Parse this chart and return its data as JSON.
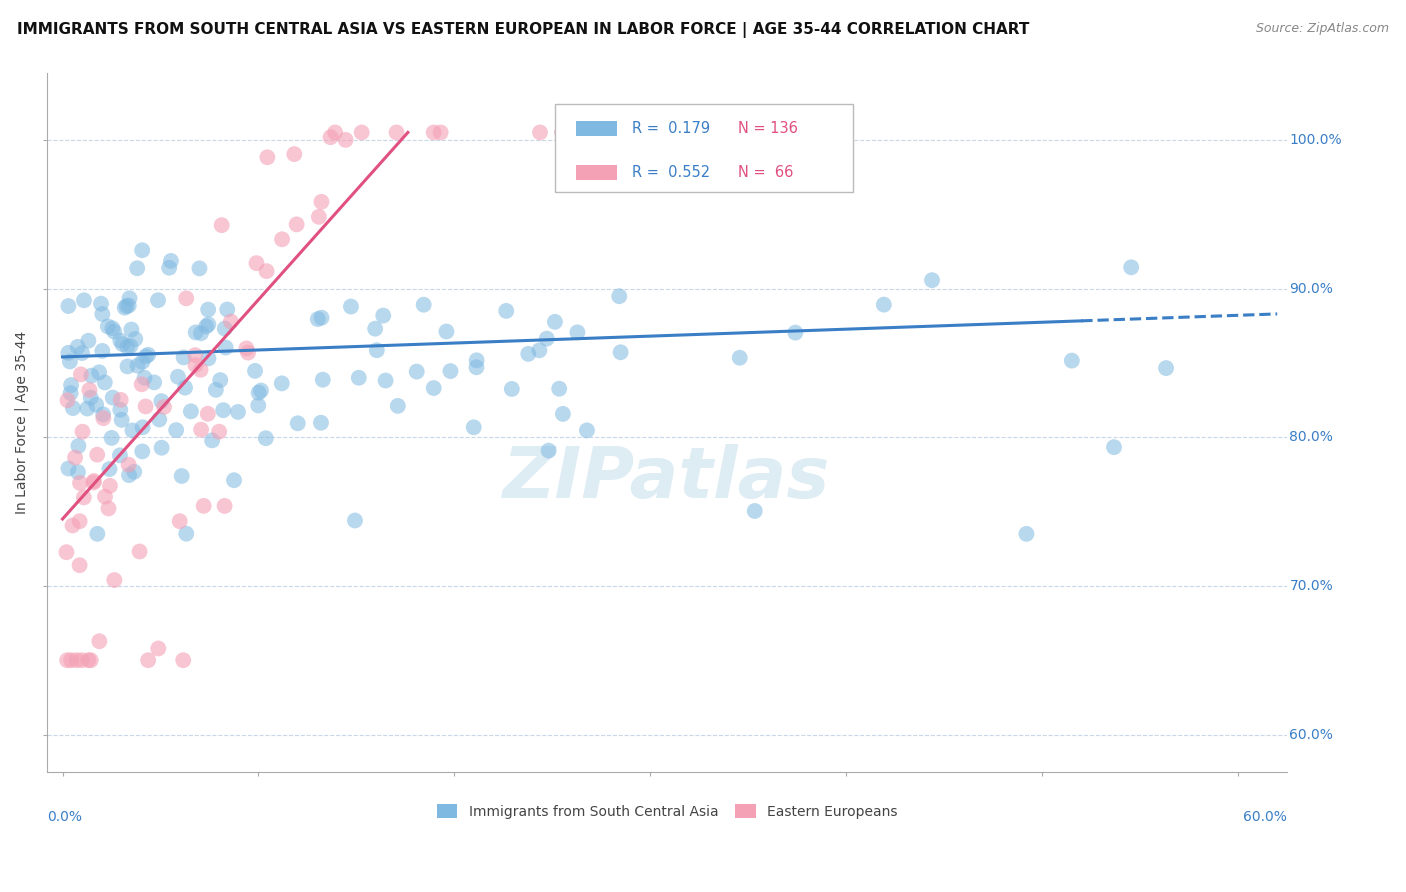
{
  "title": "IMMIGRANTS FROM SOUTH CENTRAL ASIA VS EASTERN EUROPEAN IN LABOR FORCE | AGE 35-44 CORRELATION CHART",
  "source": "Source: ZipAtlas.com",
  "ylabel": "In Labor Force | Age 35-44",
  "yaxis_labels": [
    "60.0%",
    "70.0%",
    "80.0%",
    "90.0%",
    "100.0%"
  ],
  "y_ticks": [
    0.6,
    0.7,
    0.8,
    0.9,
    1.0
  ],
  "ylim": [
    0.575,
    1.045
  ],
  "xlim": [
    -0.008,
    0.625
  ],
  "legend_r1": "R =  0.179",
  "legend_n1": "N = 136",
  "legend_r2": "R =  0.552",
  "legend_n2": "N =  66",
  "blue_color": "#7fb8e0",
  "pink_color": "#f4a0b5",
  "blue_line_color": "#3a7ec6",
  "pink_line_color": "#e05080",
  "legend_label1": "Immigrants from South Central Asia",
  "legend_label2": "Eastern Europeans",
  "background_color": "#ffffff",
  "watermark_text": "ZIPatlas",
  "title_fontsize": 11,
  "axis_label_fontsize": 10,
  "tick_fontsize": 9,
  "legend_fontsize": 10
}
